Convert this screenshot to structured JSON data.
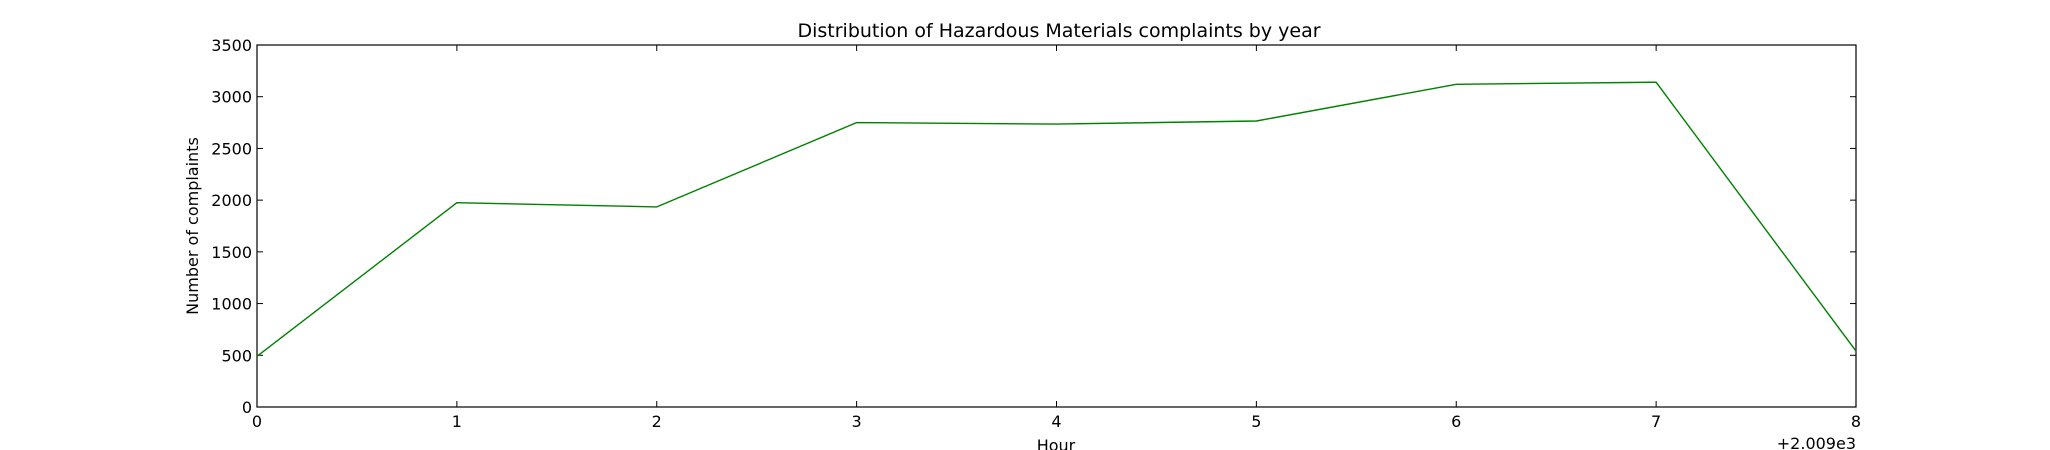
{
  "chart_data": {
    "type": "line",
    "title": "Distribution of  Hazardous Materials complaints by year",
    "xlabel": "Hour",
    "ylabel": "Number of complaints",
    "x_offset_label": "+2.009e3",
    "x": [
      0,
      1,
      2,
      3,
      4,
      5,
      6,
      7,
      8
    ],
    "xlim": [
      0,
      8
    ],
    "ylim": [
      0,
      3500
    ],
    "x_ticks": [
      0,
      1,
      2,
      3,
      4,
      5,
      6,
      7,
      8
    ],
    "y_ticks": [
      0,
      500,
      1000,
      1500,
      2000,
      2500,
      3000,
      3500
    ],
    "series": [
      {
        "color": "#008000",
        "values": [
          490,
          1975,
          1935,
          2750,
          2735,
          2765,
          3120,
          3140,
          540
        ]
      }
    ],
    "grid": false,
    "legend": false
  }
}
